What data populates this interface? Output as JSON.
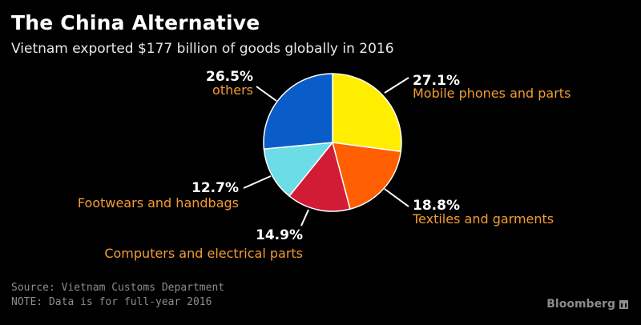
{
  "header": {
    "title": "The China Alternative",
    "subtitle": "Vietnam exported $177 billion of goods globally in 2016"
  },
  "footer": {
    "source": "Source: Vietnam Customs Department",
    "note": "NOTE: Data is for full-year 2016",
    "brand": "Bloomberg"
  },
  "colors": {
    "label_text": "#f39c34",
    "percent_text": "#ffffff",
    "leader_line": "#ffffff"
  },
  "chart_data": {
    "type": "pie",
    "title": "The China Alternative",
    "subtitle": "Vietnam exported $177 billion of goods globally in 2016",
    "unit": "%",
    "slices": [
      {
        "label": "Mobile phones and parts",
        "value": 27.1,
        "pct_label": "27.1%",
        "color": "#ffee00"
      },
      {
        "label": "Textiles and garments",
        "value": 18.8,
        "pct_label": "18.8%",
        "color": "#ff5f00"
      },
      {
        "label": "Computers and electrical parts",
        "value": 14.9,
        "pct_label": "14.9%",
        "color": "#d21c35"
      },
      {
        "label": "Footwears and handbags",
        "value": 12.7,
        "pct_label": "12.7%",
        "color": "#6cdce6"
      },
      {
        "label": "others",
        "value": 26.5,
        "pct_label": "26.5%",
        "color": "#0a5dc8"
      }
    ]
  }
}
